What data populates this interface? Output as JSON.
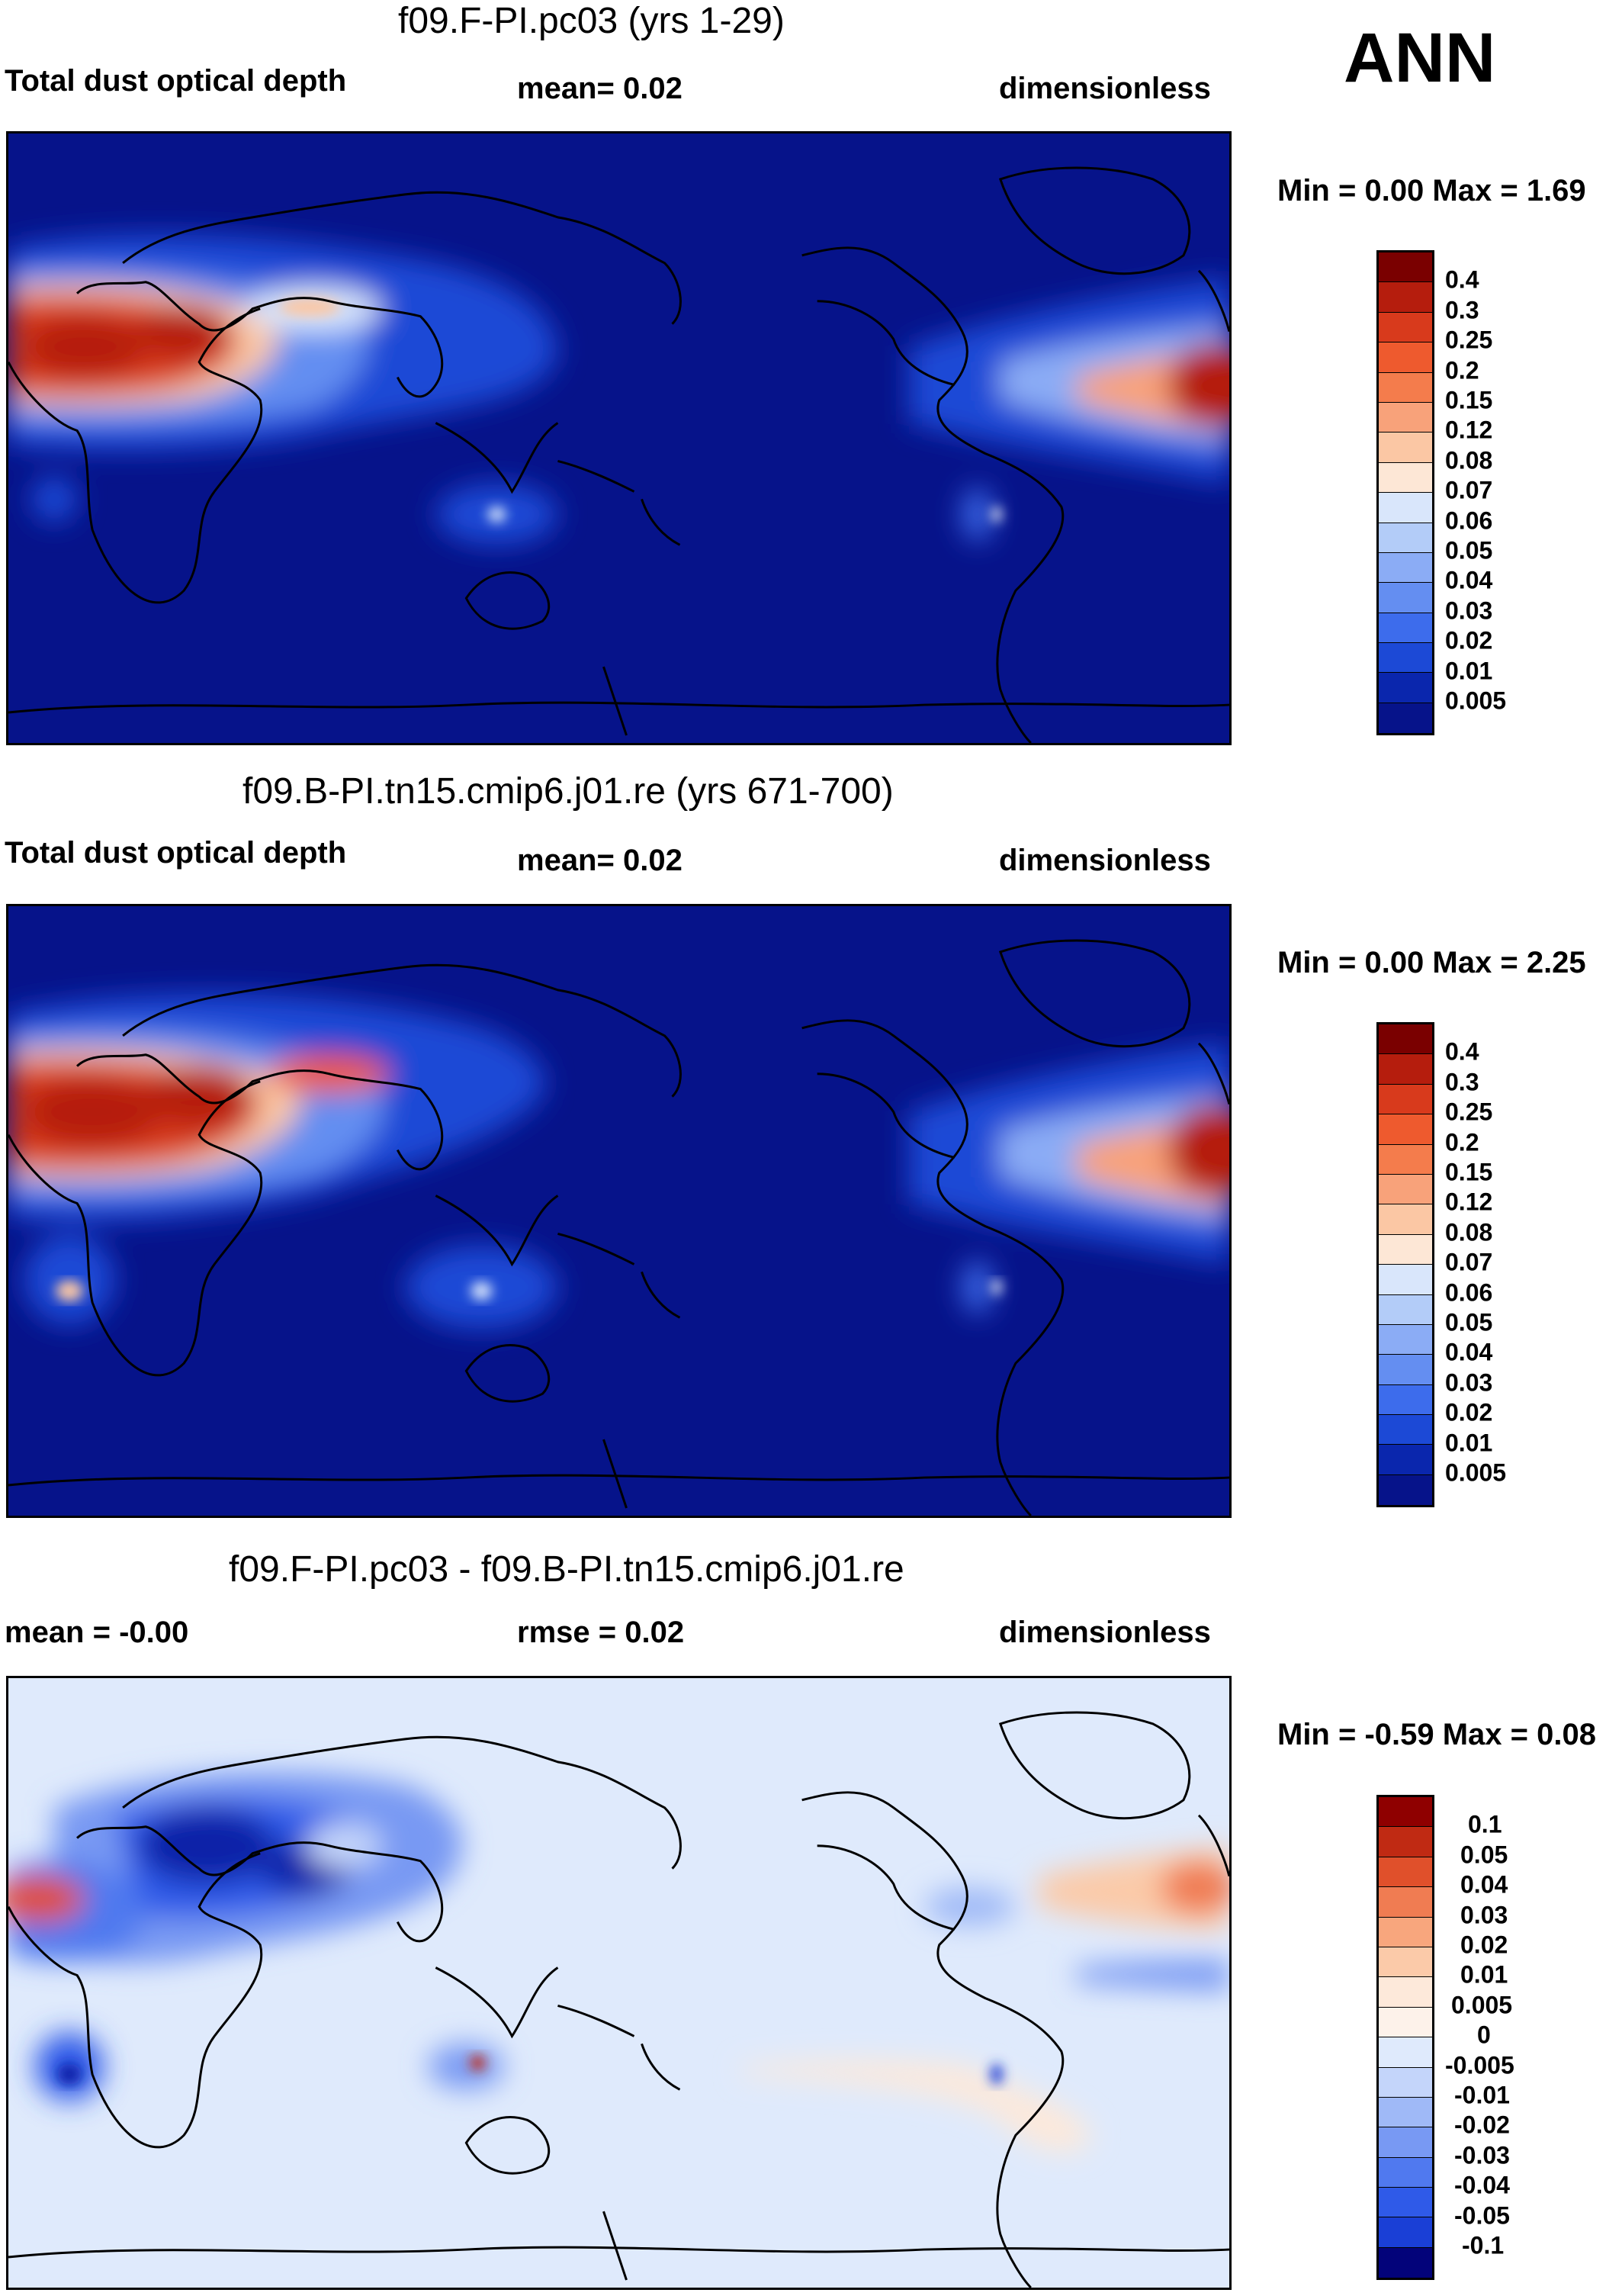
{
  "season": "ANN",
  "palettes": {
    "abs": [
      "#f5f5f5",
      "#04037a",
      "#0822a6",
      "#0c36cf",
      "#1f52e6",
      "#3f6ff0",
      "#6590f4",
      "#8daef7",
      "#b4cdfa",
      "#dbe8fc",
      "#fdebdc",
      "#fbc9ad",
      "#f8a57f",
      "#f27b51",
      "#e44f2a",
      "#c72a15",
      "#a0100a",
      "#7a0000"
    ],
    "diff": [
      "#03037a",
      "#0a22a8",
      "#1a3fd6",
      "#2f5ae8",
      "#5079ef",
      "#7899f3",
      "#9fb9f7",
      "#c4d5fa",
      "#dfeafc",
      "#fde9da",
      "#fbcaa9",
      "#f8a67d",
      "#f07c52",
      "#e0502b",
      "#c02a13",
      "#8f0000"
    ]
  },
  "panels": [
    {
      "title": "f09.F-PI.pc03 (yrs 1-29)",
      "left_label": "Total dust optical depth",
      "center_label": "mean=   0.02",
      "right_label": "dimensionless",
      "minmax": "Min =   0.00 Max =   1.69",
      "colorbar_levels": [
        "0.4",
        "0.3",
        "0.25",
        "0.2",
        "0.15",
        "0.12",
        "0.08",
        "0.07",
        "0.06",
        "0.05",
        "0.04",
        "0.03",
        "0.02",
        "0.01",
        "0.005"
      ],
      "colorbar_colors": [
        "#7a0000",
        "#b51d0d",
        "#d83a1c",
        "#ee5a2e",
        "#f47c4c",
        "#f8a27a",
        "#fbc7a4",
        "#fde7d6",
        "#d9e6fb",
        "#b3ccf8",
        "#8bacf5",
        "#648ef1",
        "#3d6cec",
        "#1c49d6",
        "#0a26ad",
        "#06138a"
      ]
    },
    {
      "title": "f09.B-PI.tn15.cmip6.j01.re (yrs 671-700)",
      "left_label": "Total dust optical depth",
      "center_label": "mean=   0.02",
      "right_label": "dimensionless",
      "minmax": "Min =   0.00 Max =   2.25",
      "colorbar_levels": [
        "0.4",
        "0.3",
        "0.25",
        "0.2",
        "0.15",
        "0.12",
        "0.08",
        "0.07",
        "0.06",
        "0.05",
        "0.04",
        "0.03",
        "0.02",
        "0.01",
        "0.005"
      ],
      "colorbar_colors": [
        "#7a0000",
        "#b51d0d",
        "#d83a1c",
        "#ee5a2e",
        "#f47c4c",
        "#f8a27a",
        "#fbc7a4",
        "#fde7d6",
        "#d9e6fb",
        "#b3ccf8",
        "#8bacf5",
        "#648ef1",
        "#3d6cec",
        "#1c49d6",
        "#0a26ad",
        "#06138a"
      ]
    },
    {
      "title": "f09.F-PI.pc03 - f09.B-PI.tn15.cmip6.j01.re",
      "left_label": "mean =  -0.00",
      "center_label": "rmse =   0.02",
      "right_label": "dimensionless",
      "minmax": "Min =  -0.59 Max =   0.08",
      "colorbar_levels": [
        "0.1",
        "0.05",
        "0.04",
        "0.03",
        "0.02",
        "0.01",
        "0.005",
        "0",
        "-0.005",
        "-0.01",
        "-0.02",
        "-0.03",
        "-0.04",
        "-0.05",
        "-0.1"
      ],
      "colorbar_colors": [
        "#8f0000",
        "#c02a13",
        "#e0502b",
        "#f07c52",
        "#f8a67d",
        "#fbcaa9",
        "#fde9da",
        "#fdf2ea",
        "#dfeafc",
        "#c4d5fa",
        "#9fb9f7",
        "#7899f3",
        "#5079ef",
        "#2f5ae8",
        "#1a3fd6",
        "#03037a"
      ]
    }
  ]
}
